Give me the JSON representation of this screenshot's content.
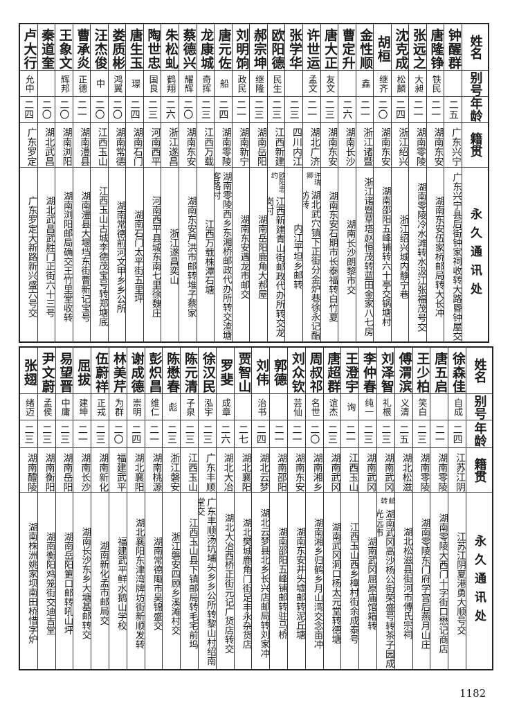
{
  "headers": {
    "name": "姓名",
    "alias": "别号",
    "age": "年龄",
    "native": "籍贯",
    "address": "永久通讯处"
  },
  "top_table": [
    {
      "name": "钟醒群",
      "alias": "",
      "age": "二五",
      "native": "广东兴宁",
      "address": "广东兴宁县后街钟家祠收转大路昬钟屋交"
    },
    {
      "name": "唐隆铮",
      "alias": "铁民",
      "age": "二一",
      "native": "湖南东安",
      "address": "湖南东安伍家桥邮局转大长冲"
    },
    {
      "name": "张远之",
      "alias": "大昶",
      "age": "二一",
      "native": "湖南零陵",
      "address": "湖南零陵冷水滩转水汲江张福茂号交"
    },
    {
      "name": "沈克成",
      "alias": "松麟",
      "age": "二四",
      "native": "浙江绍兴",
      "address": "浙江绍兴城内静宁巷"
    },
    {
      "name": "胡桓",
      "alias": "继齐",
      "age": "二〇",
      "native": "湖南东安",
      "address": "湖南邵阳五峰铺转六十亭交锅塘村"
    },
    {
      "name": "金性顺",
      "alias": "鑫",
      "age": "二一",
      "native": "浙江诸暨",
      "address": "浙江诸暨草塔赵恒茂转蓝田金家八七房"
    },
    {
      "name": "曹定升",
      "alias": "",
      "age": "二六",
      "native": "湖南长沙",
      "address": "湖南长沙朗黎市交"
    },
    {
      "name": "唐大正",
      "alias": "友文",
      "age": "二三",
      "native": "湖南东安",
      "address": "湖南东安石期市长泰福转白竹夏"
    },
    {
      "name": "许世运",
      "alias": "孟文",
      "age": "二一",
      "native": "湖北广济",
      "address": "湖北武穴镇下正街分金炉巷徐永记酯坊转",
      "note": "许瑞卿"
    },
    {
      "name": "张学华",
      "alias": "",
      "age": "二三",
      "native": "四川内江",
      "address": "内江平坦乡邮转"
    },
    {
      "name": "欧阳德",
      "alias": "民生",
      "age": "二三",
      "native": "江西新建",
      "address": "江西新建青山街邮政代办所转交龙岗村",
      "note": "欧阳忠约"
    },
    {
      "name": "郝宗坤",
      "alias": "继隆",
      "age": "二三",
      "native": "湖南岳阳",
      "address": "湖南岳阳鹿角大郝屋"
    },
    {
      "name": "刘明饷",
      "alias": "政民",
      "age": "二一",
      "native": "湖南新宁",
      "address": "湖南东安遇龙市邮交"
    },
    {
      "name": "唐元佐",
      "alias": "船",
      "age": "二四",
      "native": "湖南零陵",
      "address": "湖南零陵西乡东湘桥邮政代办所转交渣塘客路村"
    },
    {
      "name": "龙康城",
      "alias": "奇挥",
      "age": "二三",
      "native": "江西万载",
      "address": "江西万载株潭石塘"
    },
    {
      "name": "蔡德兴",
      "alias": "耀辉",
      "age": "二〇",
      "native": "湖南东安",
      "address": "湖南东安芦洪市邮转堆子蔡家"
    },
    {
      "name": "朱松虬",
      "alias": "鹤翔",
      "age": "二六",
      "native": "浙江遂昌",
      "address": "浙江遂昌奕山"
    },
    {
      "name": "陶世忠",
      "alias": "国良",
      "age": "二三",
      "native": "河南西平",
      "address": "河南西平县城东南七里徐魏庄"
    },
    {
      "name": "唐生玉",
      "alias": "璟",
      "age": "二四",
      "native": "湖南石门",
      "address": "湖南石门太平街五里坪"
    },
    {
      "name": "娄质彬",
      "alias": "鸿翼",
      "age": "二〇",
      "native": "湖南常德",
      "address": "湖南常德前河文甲乡乡公所"
    },
    {
      "name": "汪杰俊",
      "alias": "中",
      "age": "二〇",
      "native": "江西玉山",
      "address": "江西玉山古城李德茂宝号转郑塘底"
    },
    {
      "name": "曹承炎",
      "alias": "正德",
      "age": "二一",
      "native": "湖南澧县",
      "address": "湖南澧县大堰垱东街曹新记宝号"
    },
    {
      "name": "王象文",
      "alias": "辉邦",
      "age": "二〇",
      "native": "湖南浏阳",
      "address": "湖南浏阳邮局确交王竹里堂收转"
    },
    {
      "name": "秦道奎",
      "alias": "",
      "age": "二〇",
      "native": "湖北武昌",
      "address": "湖北武昌武胜门正街六十三号"
    },
    {
      "name": "卢大行",
      "alias": "允中",
      "age": "二四",
      "native": "广东罗定",
      "address": "广东罗定大新路新兴盛六号交"
    }
  ],
  "bottom_table": [
    {
      "name": "徐森佳",
      "alias": "自成",
      "age": "二四",
      "native": "江苏江阴",
      "address": "江苏江阴夏港勇大顺号交"
    },
    {
      "name": "唐五启",
      "alias": "",
      "age": "二一",
      "native": "湖南零陵",
      "address": "湖南零陵大西门十字街口懋记商店"
    },
    {
      "name": "王少柏",
      "alias": "笑白",
      "age": "二三",
      "native": "湖南零陵",
      "address": "湖南零陵东门府学宫后燕月山庄"
    },
    {
      "name": "傅渭滨",
      "alias": "义清",
      "age": "二五",
      "native": "湖北松滋",
      "address": "湖北松滋县街河市傅氏宗祠"
    },
    {
      "name": "刘泽智",
      "alias": "礼根",
      "age": "二三",
      "native": "湖南武冈",
      "address": "湖南武冈高沙杨公街荣盛号转茶子园成光远市",
      "note": "邮转"
    },
    {
      "name": "李仲春",
      "alias": "纯一",
      "age": "二三",
      "native": "湖南武冈",
      "address": "湖南武冈屈原庙馆箱转"
    },
    {
      "name": "王澄宇",
      "alias": "询",
      "age": "二一",
      "native": "江西玉山",
      "address": "江西玉山西乡樟村街余成泰号"
    },
    {
      "name": "唐超群",
      "alias": "谊杰",
      "age": "二三",
      "native": "湖南武冈",
      "address": "湖南武冈洞口杨太元堂转德塘"
    },
    {
      "name": "周叔祁",
      "alias": "名世",
      "age": "二〇",
      "native": "湖南湘乡",
      "address": "湖南湘乡归鹤乡月山湾交念亩冲"
    },
    {
      "name": "刘众钦",
      "alias": "芸仙",
      "age": "二一",
      "native": "湖南东安",
      "address": "湖南东安井头墟邮转泥丘塘"
    },
    {
      "name": "郭德",
      "alias": "",
      "age": "二一",
      "native": "湖南邵阳",
      "address": "湖南邵阳五峰铺邮转驻马桥"
    },
    {
      "name": "刘伟",
      "alias": "治书",
      "age": "二四",
      "native": "湖北云梦",
      "address": "湖北云梦县北乡长兴店邮局转刘家冲"
    },
    {
      "name": "贾智山",
      "alias": "",
      "age": "二七",
      "native": "湖北襄阳",
      "address": "湖北樊城鹿角门街足丰永杂货店"
    },
    {
      "name": "罗斐",
      "alias": "成章",
      "age": "二六",
      "native": "湖北大冶",
      "address": "湖北大冶西桥正街元记广货店转交"
    },
    {
      "name": "徐汉民",
      "alias": "泓宇",
      "age": "二三",
      "native": "广东丰顺",
      "address": "广东丰顺汤坑埔头乡乡公所转黎山村绍南堂交"
    },
    {
      "name": "陈元清",
      "alias": "子泉",
      "age": "二三",
      "native": "江西玉山",
      "address": "江西玉山县下镇邮局转毛宅前坞"
    },
    {
      "name": "陈懋春",
      "alias": "彪",
      "age": "二三",
      "native": "浙江磐安",
      "address": "浙江磐安四顾乡溪滩村交"
    },
    {
      "name": "彭炽昌",
      "alias": "维仁",
      "age": "二一",
      "native": "湖南桃源",
      "address": "湖南常德陬市吴锦盛交"
    },
    {
      "name": "谢成德",
      "alias": "崇明",
      "age": "二四",
      "native": "湖北襄阳",
      "address": "湖北襄阳东津湾牌坊街新顺发转"
    },
    {
      "name": "林美芹",
      "alias": "为群",
      "age": "二〇",
      "native": "福建武平",
      "address": "福建武平鲜水鹅山学校"
    },
    {
      "name": "伍蔚祥",
      "alias": "正戎",
      "age": "二三",
      "native": "湖南新化",
      "address": "湖南新化孟市邮局交"
    },
    {
      "name": "屈拔",
      "alias": "建坤",
      "age": "二一",
      "native": "湖南长沙",
      "address": "湖南长沙东乡大塘基邮转交"
    },
    {
      "name": "易望晋",
      "alias": "中庸",
      "age": "二三",
      "native": "湖南岳阳",
      "address": "湖南岳阳筻口邮转吼山坪"
    },
    {
      "name": "尹文蔚",
      "alias": "孟侯",
      "age": "二三",
      "native": "湖南衡阳",
      "address": "湖南衡阳鸡笼街交迪吉堂"
    },
    {
      "name": "张翅",
      "alias": "绪迈",
      "age": "二三",
      "native": "湖南醴陵",
      "address": "湖南株洲姚家坝南田桥惜字炉"
    }
  ],
  "page_number": "1182"
}
